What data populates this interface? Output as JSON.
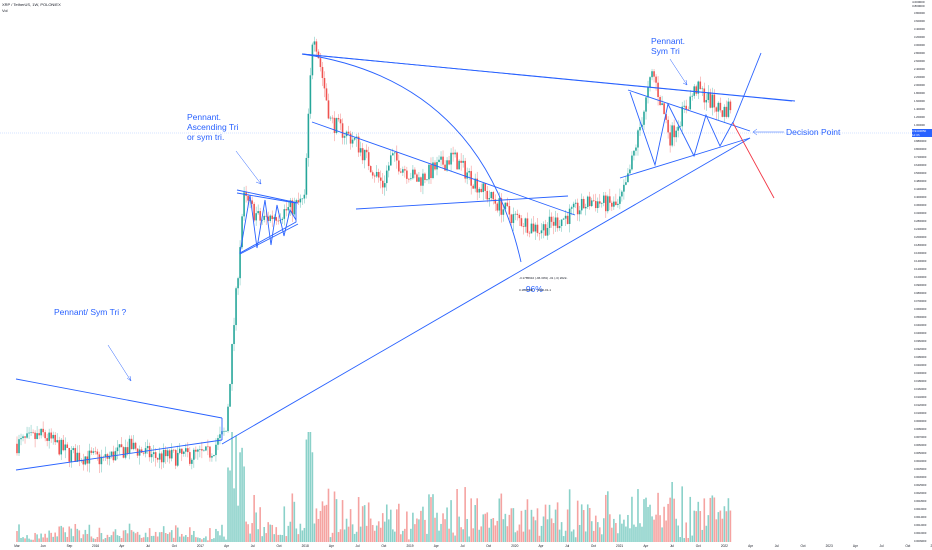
{
  "header": {
    "line1": "XRP / TetherUS, 1W, POLONIEX",
    "line2": "Vol"
  },
  "annotations": {
    "pennant_sym_tri_q": "Pennant/ Sym Tri ?",
    "pennant_ascending": "Pennant.\nAscending Tri\nor sym tri.",
    "pennant_sym_tri": "Pennant.\nSym Tri",
    "decision_point": "Decision Point",
    "drawdown": "-96%",
    "measure_line1": "-3.1785910 (-96.30%) -31 (-3) 2022-",
    "measure_line2": "0.1000000     2020-01-1"
  },
  "price_tag": {
    "line1": "0.9434850",
    "line2": "1d 3h"
  },
  "top_tag": {
    "line1": "4.000000",
    "line2": "3.800000"
  },
  "colors": {
    "up": "#26a69a",
    "down": "#ef5350",
    "up_vol": "#8ad1c9",
    "down_vol": "#f5a3a1",
    "trend": "#2962ff",
    "bear": "#f23645",
    "price_line": "#a9c7ff"
  },
  "chart_data": {
    "type": "candlestick",
    "title": "XRP / TetherUS, 1W, POLONIEX",
    "y_scale": "log",
    "y_ticks": [
      "4.000000",
      "3.800000",
      "3.600000",
      "3.400000",
      "3.200000",
      "3.000000",
      "2.800000",
      "2.600000",
      "2.400000",
      "2.200000",
      "2.000000",
      "1.800000",
      "1.600000",
      "1.400000",
      "1.200000",
      "1.000000",
      "0.9600000",
      "0.8800000",
      "0.8000000",
      "0.7200000",
      "0.6400000",
      "0.5600000",
      "0.4800000",
      "0.4400000",
      "0.4000000",
      "0.3600000",
      "0.3200000",
      "0.2800000",
      "0.2400000",
      "0.2000000",
      "0.1800000",
      "0.1600000",
      "0.1400000",
      "0.1200000",
      "0.1000000",
      "0.0900000",
      "0.0800000",
      "0.0700000",
      "0.0600000",
      "0.0500000",
      "0.0440000",
      "0.0400000",
      "0.0360000",
      "0.0320000",
      "0.0280000",
      "0.0240000",
      "0.0200000",
      "0.0180000",
      "0.0160000",
      "0.0140000",
      "0.0120000",
      "0.0100000",
      "0.0090000",
      "0.0080000",
      "0.0070000",
      "0.0060000",
      "0.0050000",
      "0.0040000",
      "0.0035000",
      "0.0030000",
      "0.0025000",
      "0.0020000",
      "0.0018000",
      "0.0016000",
      "0.0014000",
      "0.0012000",
      "0.0010000",
      "0.0009000"
    ],
    "x_ticks": [
      "Mar",
      "Jun",
      "Sep",
      "2016",
      "Apr",
      "Jul",
      "Oct",
      "2017",
      "Apr",
      "Jul",
      "Oct",
      "2018",
      "Apr",
      "Jul",
      "Oct",
      "2019",
      "Apr",
      "Jul",
      "Oct",
      "2020",
      "Apr",
      "Jul",
      "Oct",
      "2021",
      "Apr",
      "Jul",
      "Oct",
      "2022",
      "Apr",
      "Jul",
      "Oct",
      "2023",
      "Apr",
      "Jul",
      "Oct",
      "2024"
    ],
    "anchors": [
      {
        "date": "2015-03",
        "close": 0.0075
      },
      {
        "date": "2015-06",
        "close": 0.0085
      },
      {
        "date": "2015-09",
        "close": 0.0065
      },
      {
        "date": "2016-01",
        "close": 0.006
      },
      {
        "date": "2016-04",
        "close": 0.0072
      },
      {
        "date": "2016-07",
        "close": 0.0062
      },
      {
        "date": "2016-10",
        "close": 0.0063
      },
      {
        "date": "2017-01",
        "close": 0.0065
      },
      {
        "date": "2017-03",
        "close": 0.009
      },
      {
        "date": "2017-05",
        "close": 0.25
      },
      {
        "date": "2017-07",
        "close": 0.18
      },
      {
        "date": "2017-10",
        "close": 0.21
      },
      {
        "date": "2017-12",
        "close": 0.24
      },
      {
        "date": "2018-01",
        "close": 2.9
      },
      {
        "date": "2018-03",
        "close": 0.75
      },
      {
        "date": "2018-06",
        "close": 0.55
      },
      {
        "date": "2018-09",
        "close": 0.3
      },
      {
        "date": "2018-10",
        "close": 0.45
      },
      {
        "date": "2019-01",
        "close": 0.32
      },
      {
        "date": "2019-05",
        "close": 0.45
      },
      {
        "date": "2019-09",
        "close": 0.26
      },
      {
        "date": "2019-12",
        "close": 0.19
      },
      {
        "date": "2020-03",
        "close": 0.16
      },
      {
        "date": "2020-06",
        "close": 0.19
      },
      {
        "date": "2020-09",
        "close": 0.24
      },
      {
        "date": "2020-12",
        "close": 0.22
      },
      {
        "date": "2021-01",
        "close": 0.3
      },
      {
        "date": "2021-04",
        "close": 1.5
      },
      {
        "date": "2021-06",
        "close": 0.6
      },
      {
        "date": "2021-09",
        "close": 1.2
      },
      {
        "date": "2021-12",
        "close": 0.85
      },
      {
        "date": "2022-01",
        "close": 0.94
      }
    ]
  }
}
